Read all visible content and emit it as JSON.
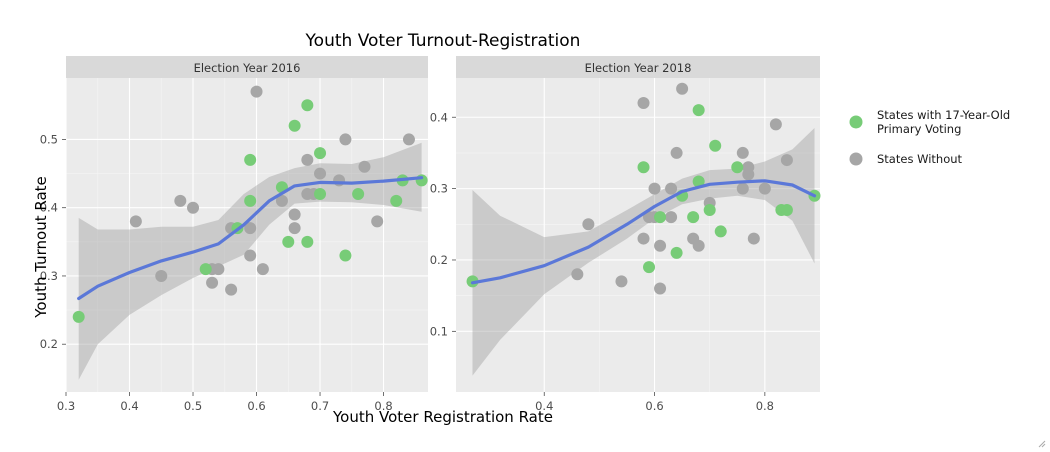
{
  "chart_data": {
    "type": "scatter",
    "title": "Youth Voter Turnout-Registration",
    "xlabel": "Youth Voter Registration Rate",
    "ylabel": "Youth Turnout Rate",
    "legend": {
      "placement": "right",
      "entries": [
        {
          "key": "with",
          "lines": [
            "States with 17-Year-Old",
            "Primary Voting"
          ],
          "color": "#77cc77"
        },
        {
          "key": "without",
          "lines": [
            "States Without"
          ],
          "color": "#a6a6a6"
        }
      ]
    },
    "smooth_color": "#5b78d8",
    "ribbon_color": "#999999",
    "panels": [
      {
        "strip": "Election Year 2016",
        "xlim": [
          0.3,
          0.87
        ],
        "ylim": [
          0.13,
          0.59
        ],
        "xticks": [
          0.3,
          0.4,
          0.5,
          0.6,
          0.7,
          0.8
        ],
        "xtick_labels": [
          "0.3",
          "0.4",
          "0.5",
          "0.6",
          "0.7",
          "0.8"
        ],
        "yticks": [
          0.2,
          0.3,
          0.4,
          0.5
        ],
        "ytick_labels": [
          "0.2",
          "0.3",
          "0.4",
          "0.5"
        ],
        "points_with": [
          [
            0.32,
            0.24
          ],
          [
            0.52,
            0.31
          ],
          [
            0.57,
            0.37
          ],
          [
            0.59,
            0.47
          ],
          [
            0.59,
            0.41
          ],
          [
            0.64,
            0.43
          ],
          [
            0.65,
            0.35
          ],
          [
            0.66,
            0.52
          ],
          [
            0.68,
            0.55
          ],
          [
            0.68,
            0.35
          ],
          [
            0.7,
            0.48
          ],
          [
            0.7,
            0.42
          ],
          [
            0.74,
            0.33
          ],
          [
            0.76,
            0.42
          ],
          [
            0.82,
            0.41
          ],
          [
            0.83,
            0.44
          ],
          [
            0.86,
            0.44
          ]
        ],
        "points_without": [
          [
            0.41,
            0.38
          ],
          [
            0.45,
            0.3
          ],
          [
            0.48,
            0.41
          ],
          [
            0.5,
            0.4
          ],
          [
            0.53,
            0.31
          ],
          [
            0.53,
            0.29
          ],
          [
            0.54,
            0.31
          ],
          [
            0.56,
            0.28
          ],
          [
            0.56,
            0.37
          ],
          [
            0.59,
            0.37
          ],
          [
            0.59,
            0.33
          ],
          [
            0.6,
            0.57
          ],
          [
            0.61,
            0.31
          ],
          [
            0.64,
            0.41
          ],
          [
            0.66,
            0.39
          ],
          [
            0.66,
            0.37
          ],
          [
            0.68,
            0.47
          ],
          [
            0.68,
            0.42
          ],
          [
            0.69,
            0.42
          ],
          [
            0.7,
            0.45
          ],
          [
            0.73,
            0.44
          ],
          [
            0.74,
            0.5
          ],
          [
            0.77,
            0.46
          ],
          [
            0.79,
            0.38
          ],
          [
            0.84,
            0.5
          ]
        ],
        "smooth": [
          [
            0.32,
            0.267
          ],
          [
            0.35,
            0.285
          ],
          [
            0.4,
            0.305
          ],
          [
            0.45,
            0.322
          ],
          [
            0.5,
            0.335
          ],
          [
            0.54,
            0.347
          ],
          [
            0.58,
            0.375
          ],
          [
            0.62,
            0.41
          ],
          [
            0.66,
            0.432
          ],
          [
            0.7,
            0.437
          ],
          [
            0.75,
            0.436
          ],
          [
            0.8,
            0.439
          ],
          [
            0.86,
            0.444
          ]
        ],
        "ribbon_upper": [
          [
            0.32,
            0.385
          ],
          [
            0.35,
            0.368
          ],
          [
            0.4,
            0.368
          ],
          [
            0.45,
            0.372
          ],
          [
            0.5,
            0.372
          ],
          [
            0.54,
            0.382
          ],
          [
            0.58,
            0.42
          ],
          [
            0.62,
            0.445
          ],
          [
            0.66,
            0.458
          ],
          [
            0.7,
            0.465
          ],
          [
            0.75,
            0.464
          ],
          [
            0.8,
            0.474
          ],
          [
            0.86,
            0.495
          ]
        ],
        "ribbon_lower": [
          [
            0.32,
            0.148
          ],
          [
            0.35,
            0.2
          ],
          [
            0.4,
            0.243
          ],
          [
            0.45,
            0.272
          ],
          [
            0.5,
            0.297
          ],
          [
            0.54,
            0.314
          ],
          [
            0.58,
            0.331
          ],
          [
            0.62,
            0.375
          ],
          [
            0.66,
            0.406
          ],
          [
            0.7,
            0.409
          ],
          [
            0.75,
            0.408
          ],
          [
            0.8,
            0.404
          ],
          [
            0.86,
            0.394
          ]
        ]
      },
      {
        "strip": "Election Year 2018",
        "xlim": [
          0.24,
          0.9
        ],
        "ylim": [
          0.015,
          0.455
        ],
        "xticks": [
          0.4,
          0.6,
          0.8
        ],
        "xtick_labels": [
          "0.4",
          "0.6",
          "0.8"
        ],
        "yticks": [
          0.1,
          0.2,
          0.3,
          0.4
        ],
        "ytick_labels": [
          "0.1",
          "0.2",
          "0.3",
          "0.4"
        ],
        "points_with": [
          [
            0.27,
            0.17
          ],
          [
            0.58,
            0.33
          ],
          [
            0.59,
            0.19
          ],
          [
            0.61,
            0.26
          ],
          [
            0.64,
            0.21
          ],
          [
            0.65,
            0.29
          ],
          [
            0.67,
            0.26
          ],
          [
            0.68,
            0.41
          ],
          [
            0.68,
            0.31
          ],
          [
            0.7,
            0.27
          ],
          [
            0.71,
            0.36
          ],
          [
            0.72,
            0.24
          ],
          [
            0.75,
            0.33
          ],
          [
            0.83,
            0.27
          ],
          [
            0.84,
            0.27
          ],
          [
            0.89,
            0.29
          ]
        ],
        "points_without": [
          [
            0.46,
            0.18
          ],
          [
            0.48,
            0.25
          ],
          [
            0.54,
            0.17
          ],
          [
            0.58,
            0.42
          ],
          [
            0.58,
            0.23
          ],
          [
            0.59,
            0.26
          ],
          [
            0.6,
            0.26
          ],
          [
            0.6,
            0.3
          ],
          [
            0.61,
            0.22
          ],
          [
            0.61,
            0.16
          ],
          [
            0.63,
            0.3
          ],
          [
            0.63,
            0.26
          ],
          [
            0.64,
            0.35
          ],
          [
            0.65,
            0.44
          ],
          [
            0.67,
            0.23
          ],
          [
            0.68,
            0.22
          ],
          [
            0.7,
            0.28
          ],
          [
            0.76,
            0.35
          ],
          [
            0.76,
            0.3
          ],
          [
            0.77,
            0.33
          ],
          [
            0.77,
            0.32
          ],
          [
            0.78,
            0.23
          ],
          [
            0.8,
            0.3
          ],
          [
            0.82,
            0.39
          ],
          [
            0.84,
            0.34
          ]
        ],
        "smooth": [
          [
            0.27,
            0.168
          ],
          [
            0.32,
            0.175
          ],
          [
            0.4,
            0.192
          ],
          [
            0.48,
            0.218
          ],
          [
            0.55,
            0.25
          ],
          [
            0.6,
            0.275
          ],
          [
            0.65,
            0.296
          ],
          [
            0.7,
            0.306
          ],
          [
            0.75,
            0.309
          ],
          [
            0.8,
            0.311
          ],
          [
            0.85,
            0.305
          ],
          [
            0.89,
            0.29
          ]
        ],
        "ribbon_upper": [
          [
            0.27,
            0.298
          ],
          [
            0.32,
            0.262
          ],
          [
            0.4,
            0.232
          ],
          [
            0.48,
            0.24
          ],
          [
            0.55,
            0.27
          ],
          [
            0.6,
            0.292
          ],
          [
            0.65,
            0.314
          ],
          [
            0.7,
            0.326
          ],
          [
            0.75,
            0.328
          ],
          [
            0.8,
            0.338
          ],
          [
            0.85,
            0.355
          ],
          [
            0.89,
            0.385
          ]
        ],
        "ribbon_lower": [
          [
            0.27,
            0.038
          ],
          [
            0.32,
            0.088
          ],
          [
            0.4,
            0.152
          ],
          [
            0.48,
            0.196
          ],
          [
            0.55,
            0.23
          ],
          [
            0.6,
            0.258
          ],
          [
            0.65,
            0.278
          ],
          [
            0.7,
            0.286
          ],
          [
            0.75,
            0.29
          ],
          [
            0.8,
            0.284
          ],
          [
            0.85,
            0.255
          ],
          [
            0.89,
            0.195
          ]
        ]
      }
    ]
  }
}
